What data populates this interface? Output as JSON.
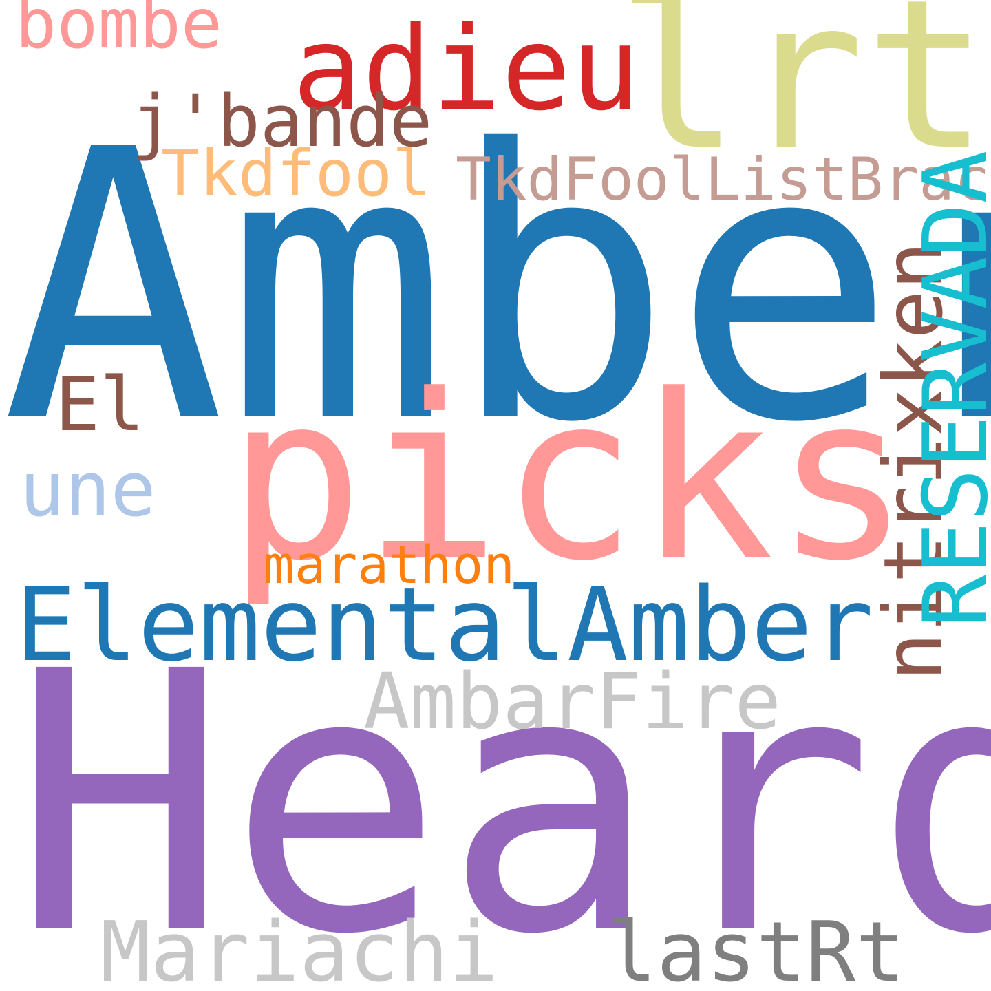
{
  "words": {
    "amber": {
      "text": "Amber",
      "color": "#1f77b4"
    },
    "heard": {
      "text": "Heard",
      "color": "#9467bd"
    },
    "picks": {
      "text": "picks",
      "color": "#ff9896"
    },
    "lrt": {
      "text": "lrt",
      "color": "#dbdb8d"
    },
    "adieu": {
      "text": "adieu",
      "color": "#d62728"
    },
    "elemental": {
      "text": "ElementalAmber",
      "color": "#1f77b4"
    },
    "jbande": {
      "text": "j'bande",
      "color": "#8c564b"
    },
    "tkdfool": {
      "text": "Tkdfool",
      "color": "#ffbb78"
    },
    "tkdfoollist": {
      "text": "TkdFoolListBracket",
      "color": "#c49c94"
    },
    "bombe": {
      "text": "bombe",
      "color": "#ff9896"
    },
    "el": {
      "text": "El",
      "color": "#8c564b"
    },
    "une": {
      "text": "une",
      "color": "#aec7e8"
    },
    "marathon": {
      "text": "marathon",
      "color": "#ff7f0e"
    },
    "ambarfire": {
      "text": "AmbarFire",
      "color": "#c7c7c7"
    },
    "mariachi": {
      "text": "Mariachi",
      "color": "#c7c7c7"
    },
    "lastrt": {
      "text": "lastRt",
      "color": "#7f7f7f"
    },
    "nitrixken": {
      "text": "nitrixken",
      "color": "#8c564b"
    },
    "reservada": {
      "text": "RESERVADA",
      "color": "#17becf"
    }
  }
}
